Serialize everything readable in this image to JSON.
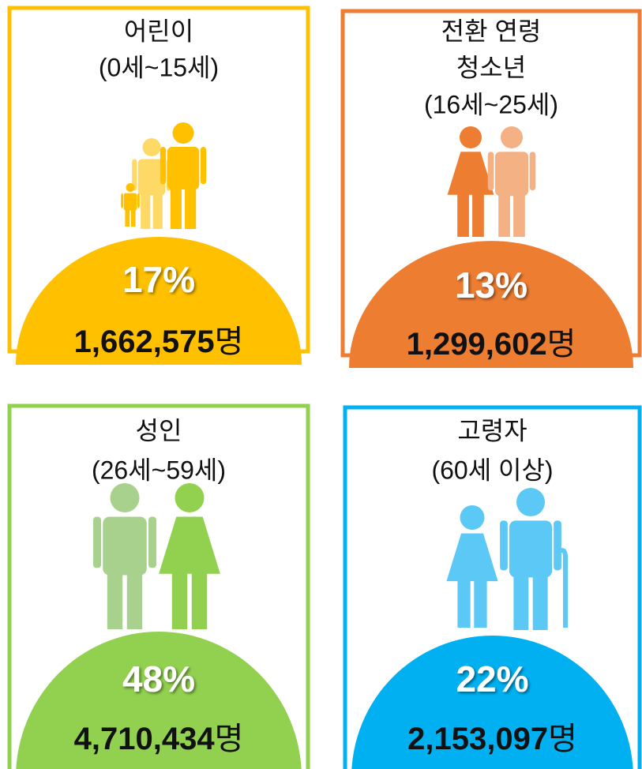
{
  "panels": [
    {
      "title_lines": [
        "어린이",
        "(0세~15세)"
      ],
      "percent": "17%",
      "count": "1,662,575",
      "unit": "명"
    },
    {
      "title_lines": [
        "전환 연령",
        "청소년",
        "(16세~25세)"
      ],
      "percent": "13%",
      "count": "1,299,602",
      "unit": "명"
    },
    {
      "title_lines": [
        "성인",
        "(26세~59세)"
      ],
      "percent": "48%",
      "count": "4,710,434",
      "unit": "명"
    },
    {
      "title_lines": [
        "고령자",
        "(60세 이상)"
      ],
      "percent": "22%",
      "count": "2,153,097",
      "unit": "명"
    }
  ]
}
